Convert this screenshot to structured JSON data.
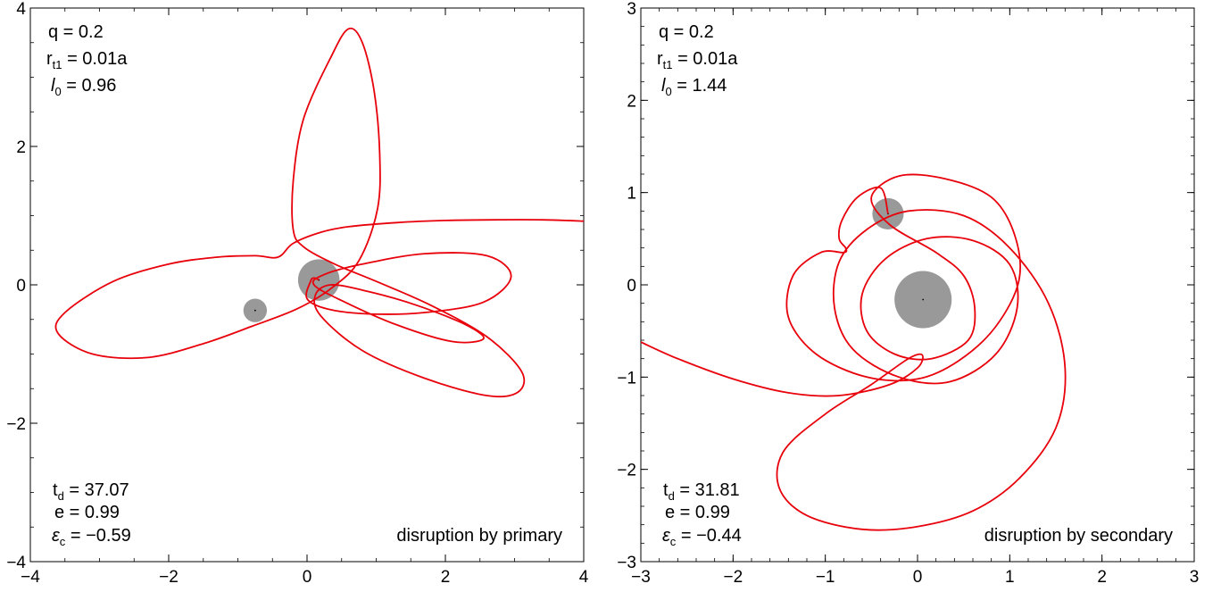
{
  "chart_data": [
    {
      "type": "line",
      "xlim": [
        -4,
        4
      ],
      "ylim": [
        -4,
        4
      ],
      "xticks": [
        -4,
        -2,
        0,
        2,
        4
      ],
      "yticks": [
        -4,
        -2,
        0,
        2,
        4
      ],
      "xtick_labels": [
        "−4",
        "−2",
        "0",
        "2",
        "4"
      ],
      "ytick_labels": [
        "−4",
        "−2",
        "0",
        "2",
        "4"
      ],
      "minor_step": 0.5,
      "grid": false,
      "params": {
        "q_label": "q =",
        "q_value": "0.2",
        "r_label": "r",
        "r_sub": "t1",
        "r_eq": "=",
        "r_value": "0.01a",
        "l_label": "l",
        "l_sub": "0",
        "l_eq": "=",
        "l_value": "0.96"
      },
      "results": {
        "td_label": "t",
        "td_sub": "d",
        "td_eq": "=",
        "td_value": "37.07",
        "e_label": "e =",
        "e_value": "0.99",
        "eps_label": "ε",
        "eps_sub": "c",
        "eps_eq": "=",
        "eps_value": "−0.59"
      },
      "annotation": "disruption by primary",
      "bodies": [
        {
          "name": "primary",
          "x": 0.17,
          "y": 0.07,
          "r": 0.3,
          "color": "#999999"
        },
        {
          "name": "secondary",
          "x": -0.75,
          "y": -0.37,
          "r": 0.17,
          "color": "#999999"
        }
      ],
      "series": [
        {
          "color": "#e8000b",
          "points": [
            [
              4.0,
              0.92
            ],
            [
              3.4,
              0.94
            ],
            [
              2.7,
              0.94
            ],
            [
              2.0,
              0.93
            ],
            [
              1.3,
              0.9
            ],
            [
              0.6,
              0.84
            ],
            [
              0.2,
              0.76
            ],
            [
              -0.2,
              0.6
            ],
            [
              -0.42,
              0.4
            ],
            [
              -0.75,
              0.42
            ],
            [
              -1.3,
              0.4
            ],
            [
              -2.0,
              0.3
            ],
            [
              -2.8,
              0.05
            ],
            [
              -3.5,
              -0.4
            ],
            [
              -3.6,
              -0.7
            ],
            [
              -3.1,
              -1.0
            ],
            [
              -2.3,
              -1.05
            ],
            [
              -1.5,
              -0.85
            ],
            [
              -0.8,
              -0.6
            ],
            [
              -0.15,
              -0.35
            ],
            [
              0.35,
              -0.05
            ],
            [
              0.75,
              0.35
            ],
            [
              1.02,
              1.1
            ],
            [
              1.05,
              1.9
            ],
            [
              0.97,
              2.8
            ],
            [
              0.8,
              3.5
            ],
            [
              0.6,
              3.7
            ],
            [
              0.35,
              3.3
            ],
            [
              -0.05,
              2.4
            ],
            [
              -0.2,
              1.5
            ],
            [
              -0.2,
              0.8
            ],
            [
              -0.05,
              0.55
            ],
            [
              0.4,
              0.3
            ],
            [
              1.0,
              0.05
            ],
            [
              1.8,
              -0.3
            ],
            [
              2.6,
              -0.75
            ],
            [
              3.1,
              -1.25
            ],
            [
              3.05,
              -1.55
            ],
            [
              2.6,
              -1.6
            ],
            [
              1.7,
              -1.35
            ],
            [
              0.8,
              -0.95
            ],
            [
              0.2,
              -0.45
            ],
            [
              0.12,
              -0.15
            ],
            [
              0.35,
              0.0
            ],
            [
              0.9,
              -0.1
            ],
            [
              1.6,
              -0.3
            ],
            [
              2.3,
              -0.58
            ],
            [
              2.55,
              -0.78
            ],
            [
              2.1,
              -0.82
            ],
            [
              1.3,
              -0.58
            ],
            [
              0.55,
              -0.25
            ],
            [
              0.1,
              0.0
            ],
            [
              0.25,
              0.15
            ],
            [
              0.8,
              0.3
            ],
            [
              1.7,
              0.45
            ],
            [
              2.6,
              0.42
            ],
            [
              2.95,
              0.12
            ],
            [
              2.55,
              -0.25
            ],
            [
              1.7,
              -0.4
            ],
            [
              0.9,
              -0.42
            ],
            [
              0.3,
              -0.35
            ],
            [
              0.0,
              -0.2
            ],
            [
              0.05,
              0.05
            ],
            [
              0.1,
              0.1
            ],
            [
              0.17,
              0.07
            ]
          ]
        }
      ]
    },
    {
      "type": "line",
      "xlim": [
        -3,
        3
      ],
      "ylim": [
        -3,
        3
      ],
      "xticks": [
        -3,
        -2,
        -1,
        0,
        1,
        2,
        3
      ],
      "yticks": [
        -3,
        -2,
        -1,
        0,
        1,
        2,
        3
      ],
      "xtick_labels": [
        "−3",
        "−2",
        "−1",
        "0",
        "1",
        "2",
        "3"
      ],
      "ytick_labels": [
        "−3",
        "−2",
        "−1",
        "0",
        "1",
        "2",
        "3"
      ],
      "minor_step": 0.2,
      "grid": false,
      "params": {
        "q_label": "q =",
        "q_value": "0.2",
        "r_label": "r",
        "r_sub": "t1",
        "r_eq": "=",
        "r_value": "0.01a",
        "l_label": "l",
        "l_sub": "0",
        "l_eq": "=",
        "l_value": "1.44"
      },
      "results": {
        "td_label": "t",
        "td_sub": "d",
        "td_eq": "=",
        "td_value": "31.81",
        "e_label": "e =",
        "e_value": "0.99",
        "eps_label": "ε",
        "eps_sub": "c",
        "eps_eq": "=",
        "eps_value": "−0.44"
      },
      "annotation": "disruption by secondary",
      "bodies": [
        {
          "name": "primary",
          "x": 0.06,
          "y": -0.16,
          "r": 0.31,
          "color": "#999999"
        },
        {
          "name": "secondary",
          "x": -0.32,
          "y": 0.77,
          "r": 0.17,
          "color": "#999999"
        }
      ],
      "series": [
        {
          "color": "#e8000b",
          "points": [
            [
              -3.0,
              -0.62
            ],
            [
              -2.6,
              -0.8
            ],
            [
              -2.0,
              -1.02
            ],
            [
              -1.4,
              -1.17
            ],
            [
              -0.85,
              -1.2
            ],
            [
              -0.3,
              -1.08
            ],
            [
              0.0,
              -0.9
            ],
            [
              0.05,
              -0.76
            ],
            [
              -0.1,
              -0.8
            ],
            [
              -0.5,
              -1.08
            ],
            [
              -1.0,
              -1.4
            ],
            [
              -1.45,
              -1.8
            ],
            [
              -1.5,
              -2.2
            ],
            [
              -1.2,
              -2.5
            ],
            [
              -0.6,
              -2.65
            ],
            [
              0.0,
              -2.62
            ],
            [
              0.6,
              -2.45
            ],
            [
              1.1,
              -2.1
            ],
            [
              1.5,
              -1.55
            ],
            [
              1.6,
              -0.9
            ],
            [
              1.42,
              -0.2
            ],
            [
              1.0,
              0.4
            ],
            [
              0.5,
              0.75
            ],
            [
              -0.1,
              0.8
            ],
            [
              -0.55,
              0.6
            ],
            [
              -0.85,
              0.25
            ],
            [
              -0.9,
              -0.25
            ],
            [
              -0.7,
              -0.7
            ],
            [
              -0.2,
              -1.0
            ],
            [
              0.35,
              -1.05
            ],
            [
              0.85,
              -0.75
            ],
            [
              1.08,
              -0.25
            ],
            [
              1.0,
              0.22
            ],
            [
              0.6,
              0.48
            ],
            [
              0.1,
              0.5
            ],
            [
              -0.35,
              0.28
            ],
            [
              -0.6,
              -0.1
            ],
            [
              -0.55,
              -0.5
            ],
            [
              -0.25,
              -0.75
            ],
            [
              0.15,
              -0.8
            ],
            [
              0.55,
              -0.6
            ],
            [
              0.62,
              -0.25
            ],
            [
              0.5,
              0.1
            ],
            [
              0.2,
              0.35
            ],
            [
              -0.3,
              0.65
            ],
            [
              -0.5,
              0.95
            ],
            [
              -0.2,
              1.18
            ],
            [
              0.3,
              1.15
            ],
            [
              0.8,
              0.95
            ],
            [
              1.05,
              0.55
            ],
            [
              1.1,
              0.05
            ],
            [
              0.85,
              -0.45
            ],
            [
              0.45,
              -0.82
            ],
            [
              0.0,
              -1.02
            ],
            [
              -0.55,
              -1.0
            ],
            [
              -1.1,
              -0.75
            ],
            [
              -1.4,
              -0.35
            ],
            [
              -1.35,
              0.1
            ],
            [
              -1.05,
              0.35
            ],
            [
              -0.8,
              0.35
            ],
            [
              -0.78,
              0.4
            ],
            [
              -0.85,
              0.5
            ],
            [
              -0.82,
              0.7
            ],
            [
              -0.65,
              0.95
            ],
            [
              -0.4,
              1.05
            ],
            [
              -0.32,
              0.77
            ]
          ]
        }
      ]
    }
  ]
}
